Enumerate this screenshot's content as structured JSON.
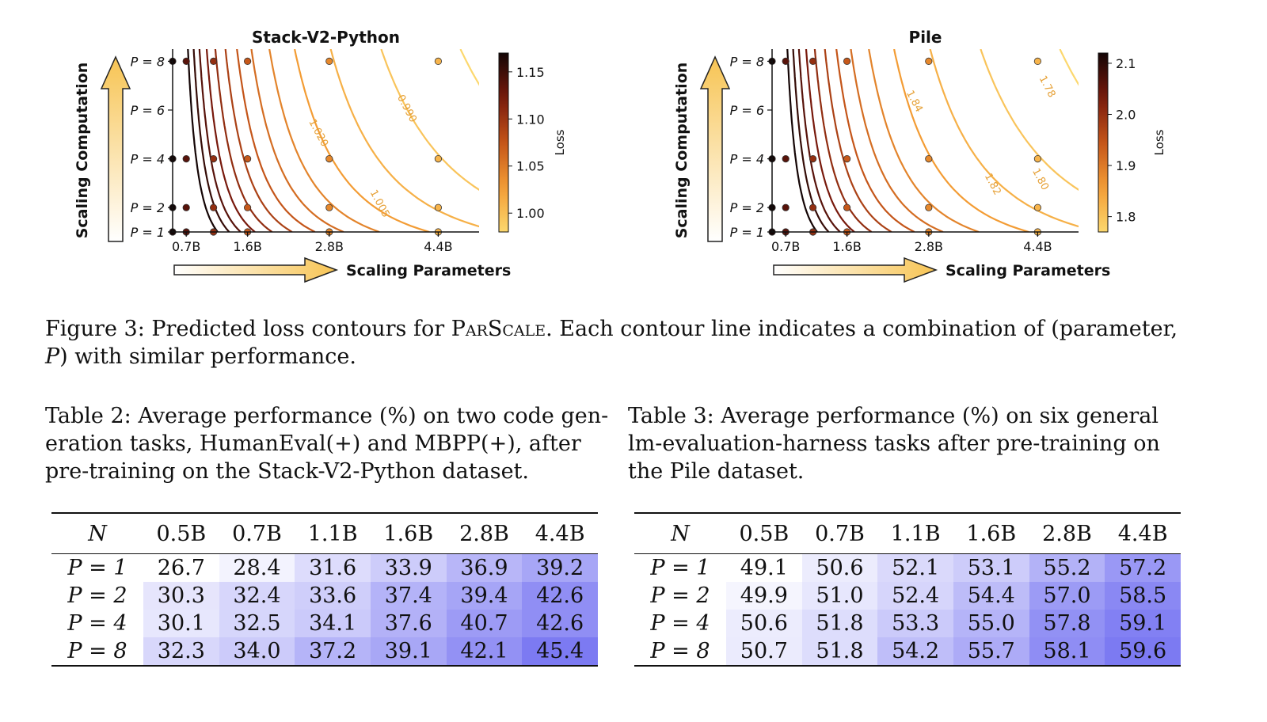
{
  "figure": {
    "caption_label": "Figure 3:",
    "caption_pre": " Predicted loss contours for ",
    "caption_method": "ParScale",
    "caption_post": ". Each contour line indicates a combination of (parameter,",
    "caption_line2_var": "P",
    "caption_line2_rest": ") with similar performance.",
    "yaxis_arrow_label": "Scaling Computation",
    "xaxis_arrow_label": "Scaling Parameters",
    "colorbar_label": "Loss"
  },
  "chart_data": [
    {
      "type": "contour",
      "title": "Stack-V2-Python",
      "x_ticks": [
        "0.7B",
        "1.6B",
        "2.8B",
        "4.4B"
      ],
      "x_tick_values": [
        0.7,
        1.6,
        2.8,
        4.4
      ],
      "y_ticks": [
        "P = 1",
        "P = 2",
        "P = 4",
        "P = 6",
        "P = 8"
      ],
      "y_tick_values": [
        1,
        2,
        4,
        6,
        8
      ],
      "xlim": [
        0.5,
        5.0
      ],
      "ylim": [
        1,
        8.5
      ],
      "colorbar": {
        "label": "Loss",
        "min": 0.98,
        "max": 1.17,
        "ticks": [
          "1.00",
          "1.05",
          "1.10",
          "1.15"
        ],
        "tick_values": [
          1.0,
          1.05,
          1.1,
          1.15
        ]
      },
      "contour_labels": [
        {
          "text": "1.020",
          "x": 2.6,
          "p": 5.0
        },
        {
          "text": "0.990",
          "x": 3.9,
          "p": 6.0
        },
        {
          "text": "1.005",
          "x": 3.5,
          "p": 2.1
        }
      ],
      "points_params": [
        0.5,
        0.7,
        1.1,
        1.6,
        2.8,
        4.4
      ],
      "points_P": [
        1,
        2,
        4,
        8
      ]
    },
    {
      "type": "contour",
      "title": "Pile",
      "x_ticks": [
        "0.7B",
        "1.6B",
        "2.8B",
        "4.4B"
      ],
      "x_tick_values": [
        0.7,
        1.6,
        2.8,
        4.4
      ],
      "y_ticks": [
        "P = 1",
        "P = 2",
        "P = 4",
        "P = 6",
        "P = 8"
      ],
      "y_tick_values": [
        1,
        2,
        4,
        6,
        8
      ],
      "xlim": [
        0.5,
        5.0
      ],
      "ylim": [
        1,
        8.5
      ],
      "colorbar": {
        "label": "Loss",
        "min": 1.77,
        "max": 2.12,
        "ticks": [
          "1.8",
          "1.9",
          "2.0",
          "2.1"
        ],
        "tick_values": [
          1.8,
          1.9,
          2.0,
          2.1
        ]
      },
      "contour_labels": [
        {
          "text": "1.84",
          "x": 2.55,
          "p": 6.3
        },
        {
          "text": "1.78",
          "x": 4.5,
          "p": 6.9
        },
        {
          "text": "1.82",
          "x": 3.7,
          "p": 2.9
        },
        {
          "text": "1.80",
          "x": 4.4,
          "p": 3.1
        }
      ],
      "points_params": [
        0.5,
        0.7,
        1.1,
        1.6,
        2.8,
        4.4
      ],
      "points_P": [
        1,
        2,
        4,
        8
      ]
    }
  ],
  "tables": [
    {
      "caption_label": "Table 2:",
      "caption_text": " Average performance (%) on two code generation tasks, HumanEval(+) and MBPP(+), after pre-training on the Stack-V2-Python dataset.",
      "caption_lines": [
        "Table 2: Average performance (%) on two code gen-",
        "eration tasks, HumanEval(+) and MBPP(+), after",
        "pre-training on the Stack-V2-Python dataset."
      ],
      "header_N": "N",
      "columns": [
        "0.5B",
        "0.7B",
        "1.1B",
        "1.6B",
        "2.8B",
        "4.4B"
      ],
      "rows": [
        {
          "label": "P = 1",
          "values": [
            "26.7",
            "28.4",
            "31.6",
            "33.9",
            "36.9",
            "39.2"
          ]
        },
        {
          "label": "P = 2",
          "values": [
            "30.3",
            "32.4",
            "33.6",
            "37.4",
            "39.4",
            "42.6"
          ]
        },
        {
          "label": "P = 4",
          "values": [
            "30.1",
            "32.5",
            "34.1",
            "37.6",
            "40.7",
            "42.6"
          ]
        },
        {
          "label": "P = 8",
          "values": [
            "32.3",
            "34.0",
            "37.2",
            "39.1",
            "42.1",
            "45.4"
          ]
        }
      ],
      "heat_min": 26.7,
      "heat_max": 45.4
    },
    {
      "caption_label": "Table 3:",
      "caption_text": " Average performance (%) on six general lm-evaluation-harness tasks after pre-training on the Pile dataset.",
      "caption_lines": [
        "Table 3: Average performance (%) on six general",
        "lm-evaluation-harness tasks after pre-training on",
        "the Pile dataset."
      ],
      "header_N": "N",
      "columns": [
        "0.5B",
        "0.7B",
        "1.1B",
        "1.6B",
        "2.8B",
        "4.4B"
      ],
      "rows": [
        {
          "label": "P = 1",
          "values": [
            "49.1",
            "50.6",
            "52.1",
            "53.1",
            "55.2",
            "57.2"
          ]
        },
        {
          "label": "P = 2",
          "values": [
            "49.9",
            "51.0",
            "52.4",
            "54.4",
            "57.0",
            "58.5"
          ]
        },
        {
          "label": "P = 4",
          "values": [
            "50.6",
            "51.8",
            "53.3",
            "55.0",
            "57.8",
            "59.1"
          ]
        },
        {
          "label": "P = 8",
          "values": [
            "50.7",
            "51.8",
            "54.2",
            "55.7",
            "58.1",
            "59.6"
          ]
        }
      ],
      "heat_min": 49.1,
      "heat_max": 59.6
    }
  ]
}
